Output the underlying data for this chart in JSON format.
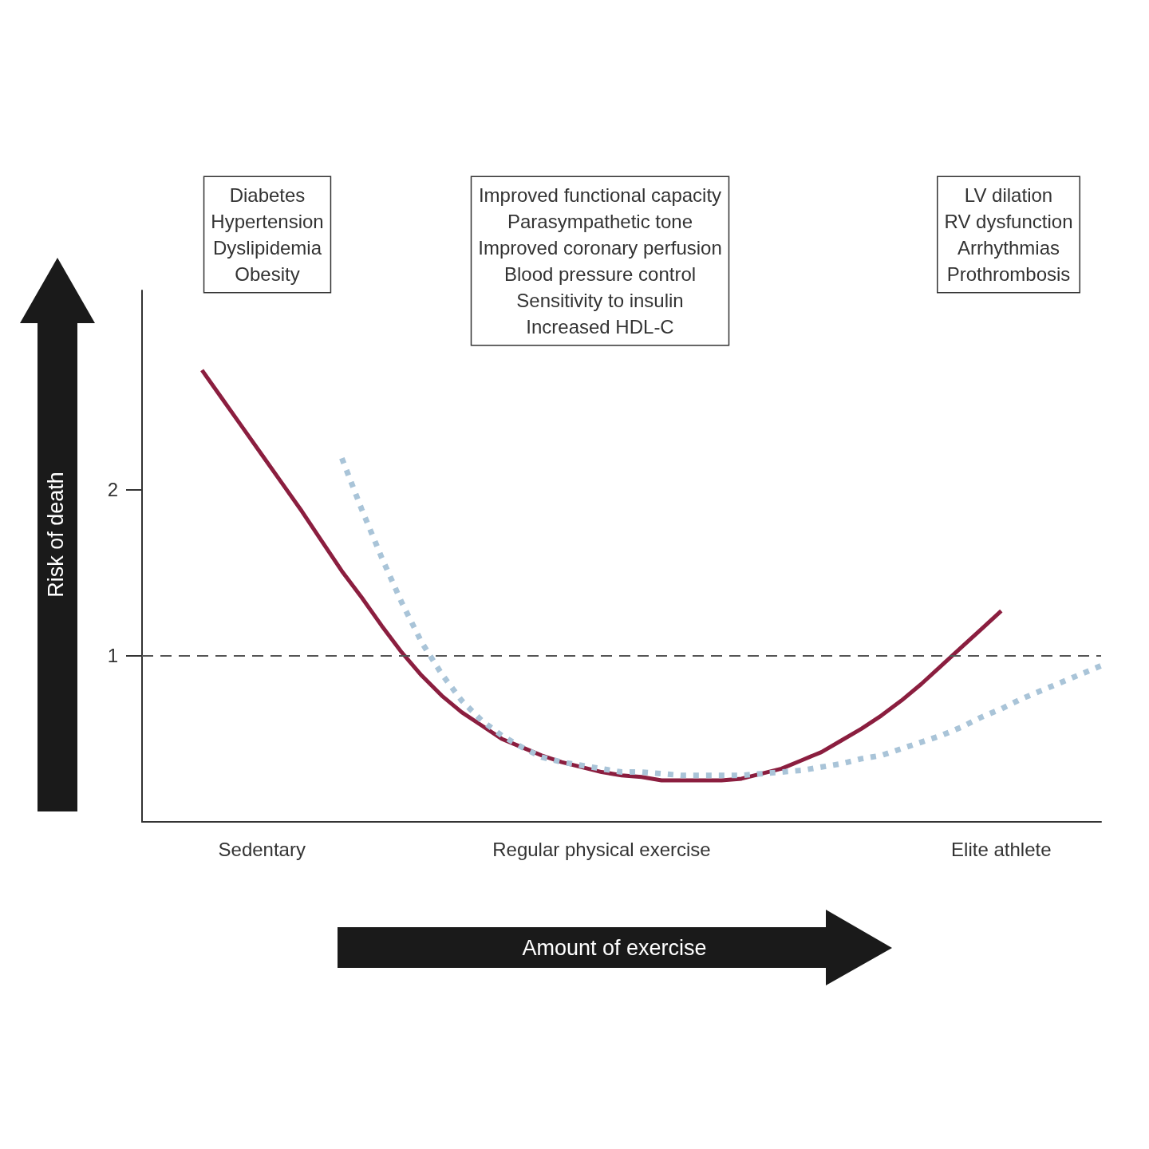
{
  "chart_data": {
    "type": "line",
    "xlabel": "Amount of exercise",
    "ylabel": "Risk of death",
    "categories": [
      null,
      null,
      null,
      null,
      null,
      null,
      "Sedentary",
      null,
      null,
      null,
      null,
      null,
      null,
      null,
      null,
      null,
      null,
      null,
      null,
      null,
      null,
      null,
      null,
      "Regular physical exercise",
      null,
      null,
      null,
      null,
      null,
      null,
      null,
      null,
      null,
      null,
      null,
      null,
      null,
      null,
      null,
      null,
      null,
      null,
      null,
      "Elite athlete",
      null,
      null,
      null,
      null,
      null
    ],
    "ylim": [
      0,
      3.2
    ],
    "yticks": [
      1,
      2
    ],
    "series": [
      {
        "color": "#8b1e3f",
        "line_style": "solid",
        "values": [
          null,
          null,
          null,
          2.72,
          2.55,
          2.38,
          2.21,
          2.04,
          1.87,
          1.69,
          1.51,
          1.35,
          1.18,
          1.02,
          0.88,
          0.76,
          0.66,
          0.58,
          0.5,
          0.45,
          0.4,
          0.36,
          0.33,
          0.3,
          0.28,
          0.27,
          0.25,
          0.25,
          0.25,
          0.25,
          0.26,
          0.29,
          0.32,
          0.37,
          0.42,
          0.49,
          0.56,
          0.64,
          0.73,
          0.83,
          0.94,
          1.05,
          1.16,
          1.27,
          null,
          null,
          null,
          null,
          null
        ]
      },
      {
        "color": "#a9c4d8",
        "line_style": "dotted",
        "values": [
          null,
          null,
          null,
          null,
          null,
          null,
          null,
          null,
          null,
          null,
          2.19,
          1.88,
          1.59,
          1.32,
          1.08,
          0.89,
          0.73,
          0.61,
          0.52,
          0.45,
          0.39,
          0.36,
          0.34,
          0.32,
          0.3,
          0.3,
          0.29,
          0.28,
          0.28,
          0.28,
          0.28,
          0.29,
          0.3,
          0.31,
          0.33,
          0.35,
          0.38,
          0.4,
          0.44,
          0.48,
          0.52,
          0.57,
          0.63,
          0.68,
          0.74,
          0.79,
          0.84,
          0.89,
          0.94
        ]
      }
    ],
    "ref_lines": [
      {
        "axis": "y",
        "value": 1,
        "color": "#555555",
        "line_style": "dashed"
      }
    ],
    "annotations": [
      "Diabetes\nHypertension\nDyslipidemia\nObesity",
      "Improved functional capacity\nParasympathetic tone\nImproved coronary perfusion\nBlood pressure control\nSensitivity to insulin\nIncreased HDL-C",
      "LV dilation\nRV dysfunction\nArrhythmias\nProthrombosis"
    ]
  }
}
